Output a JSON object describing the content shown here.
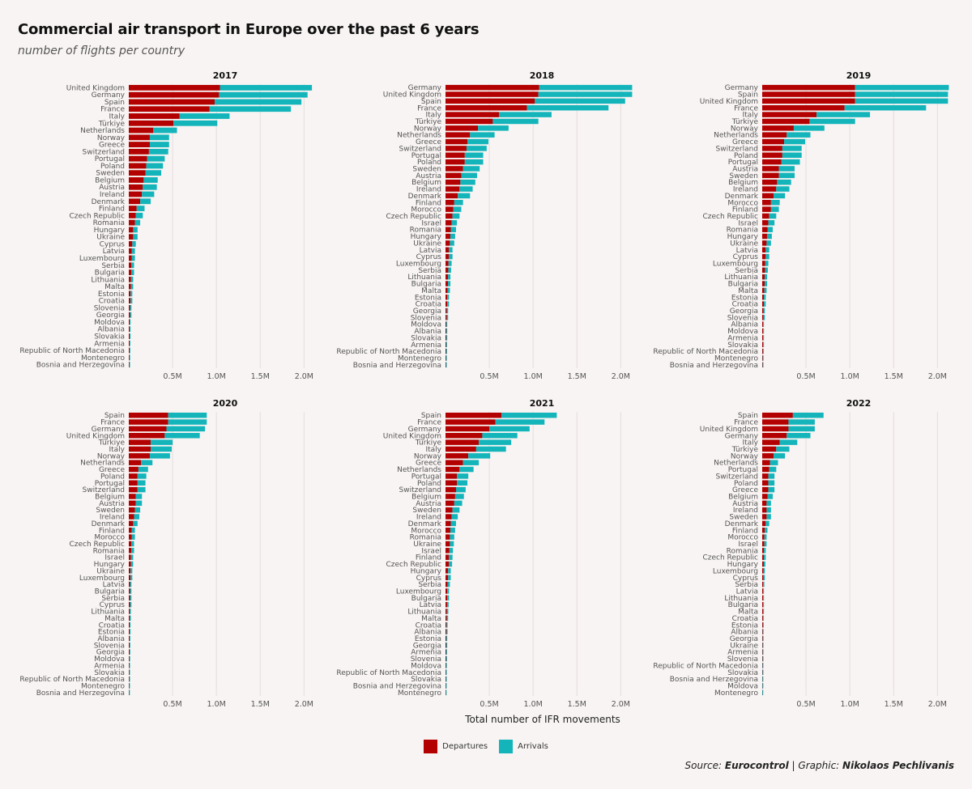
{
  "title": "Commercial air transport in Europe over the past 6 years",
  "subtitle": "number of flights per country",
  "x_axis_title": "Total number of IFR movements",
  "legend": [
    {
      "label": "Departures",
      "color": "#b30000"
    },
    {
      "label": "Arrivals",
      "color": "#13b5bb"
    }
  ],
  "source": {
    "prefix": "Source:",
    "source_name": "Eurocontrol",
    "separator": "|",
    "graphic_prefix": "Graphic:",
    "author": "Nikolaos Pechlivanis"
  },
  "colors": {
    "departures": "#b30000",
    "arrivals": "#13b5bb",
    "grid": "#e4dedd"
  },
  "chart_data": [
    {
      "type": "bar",
      "title": "2017",
      "stacked": true,
      "orientation": "horizontal",
      "xlim": [
        0,
        2200000
      ],
      "x_ticks": [
        500000,
        1000000,
        1500000,
        2000000
      ],
      "x_tick_labels": [
        "0.5M",
        "1.0M",
        "1.5M",
        "2.0M"
      ],
      "categories": [
        "United Kingdom",
        "Germany",
        "Spain",
        "France",
        "Italy",
        "Türkiye",
        "Netherlands",
        "Norway",
        "Greece",
        "Switzerland",
        "Portugal",
        "Poland",
        "Sweden",
        "Belgium",
        "Austria",
        "Ireland",
        "Denmark",
        "Finland",
        "Czech Republic",
        "Romania",
        "Hungary",
        "Ukraine",
        "Cyprus",
        "Latvia",
        "Luxembourg",
        "Serbia",
        "Bulgaria",
        "Lithuania",
        "Malta",
        "Estonia",
        "Croatia",
        "Slovenia",
        "Georgia",
        "Moldova",
        "Albania",
        "Slovakia",
        "Armenia",
        "Republic of North Macedonia",
        "Montenegro",
        "Bosnia and Herzegovina"
      ],
      "series": [
        {
          "name": "Departures",
          "values": [
            1040000,
            1030000,
            980000,
            920000,
            580000,
            510000,
            280000,
            240000,
            240000,
            230000,
            210000,
            200000,
            190000,
            170000,
            160000,
            150000,
            130000,
            90000,
            80000,
            70000,
            50000,
            50000,
            40000,
            35000,
            35000,
            30000,
            30000,
            25000,
            25000,
            20000,
            20000,
            15000,
            15000,
            10000,
            10000,
            10000,
            8000,
            8000,
            6000,
            5000
          ]
        },
        {
          "name": "Arrivals",
          "values": [
            1050000,
            1010000,
            990000,
            930000,
            570000,
            500000,
            270000,
            220000,
            220000,
            220000,
            200000,
            190000,
            180000,
            160000,
            160000,
            140000,
            120000,
            90000,
            80000,
            60000,
            50000,
            50000,
            40000,
            35000,
            35000,
            30000,
            30000,
            25000,
            25000,
            20000,
            20000,
            15000,
            15000,
            10000,
            10000,
            10000,
            8000,
            8000,
            6000,
            5000
          ]
        }
      ]
    },
    {
      "type": "bar",
      "title": "2018",
      "stacked": true,
      "orientation": "horizontal",
      "xlim": [
        0,
        2200000
      ],
      "x_ticks": [
        500000,
        1000000,
        1500000,
        2000000
      ],
      "x_tick_labels": [
        "0.5M",
        "1.0M",
        "1.5M",
        "2.0M"
      ],
      "categories": [
        "Germany",
        "United Kingdom",
        "Spain",
        "France",
        "Italy",
        "Türkiye",
        "Norway",
        "Netherlands",
        "Greece",
        "Switzerland",
        "Portugal",
        "Poland",
        "Sweden",
        "Austria",
        "Belgium",
        "Ireland",
        "Denmark",
        "Finland",
        "Morocco",
        "Czech Republic",
        "Israel",
        "Romania",
        "Hungary",
        "Ukraine",
        "Latvia",
        "Cyprus",
        "Luxembourg",
        "Serbia",
        "Lithuania",
        "Bulgaria",
        "Malta",
        "Estonia",
        "Croatia",
        "Georgia",
        "Slovenia",
        "Moldova",
        "Albania",
        "Slovakia",
        "Armenia",
        "Republic of North Macedonia",
        "Montenegro",
        "Bosnia and Herzegovina"
      ],
      "series": [
        {
          "name": "Departures",
          "values": [
            1070000,
            1060000,
            1020000,
            930000,
            610000,
            540000,
            370000,
            280000,
            250000,
            240000,
            220000,
            220000,
            200000,
            180000,
            170000,
            160000,
            140000,
            100000,
            90000,
            80000,
            70000,
            60000,
            55000,
            50000,
            40000,
            40000,
            35000,
            32000,
            28000,
            28000,
            25000,
            20000,
            20000,
            15000,
            15000,
            10000,
            10000,
            10000,
            8000,
            8000,
            6000,
            5000
          ]
        },
        {
          "name": "Arrivals",
          "values": [
            1060000,
            1070000,
            1030000,
            930000,
            600000,
            520000,
            350000,
            280000,
            240000,
            230000,
            210000,
            210000,
            190000,
            180000,
            170000,
            150000,
            140000,
            100000,
            90000,
            80000,
            60000,
            60000,
            55000,
            50000,
            40000,
            40000,
            35000,
            32000,
            28000,
            28000,
            25000,
            20000,
            20000,
            15000,
            15000,
            10000,
            10000,
            10000,
            8000,
            8000,
            6000,
            5000
          ]
        }
      ]
    },
    {
      "type": "bar",
      "title": "2019",
      "stacked": true,
      "orientation": "horizontal",
      "xlim": [
        0,
        2200000
      ],
      "x_ticks": [
        500000,
        1000000,
        1500000,
        2000000
      ],
      "x_tick_labels": [
        "0.5M",
        "1.0M",
        "1.5M",
        "2.0M"
      ],
      "categories": [
        "Germany",
        "Spain",
        "United Kingdom",
        "France",
        "Italy",
        "Türkiye",
        "Norway",
        "Netherlands",
        "Greece",
        "Switzerland",
        "Poland",
        "Portugal",
        "Austria",
        "Sweden",
        "Belgium",
        "Ireland",
        "Denmark",
        "Morocco",
        "Finland",
        "Czech Republic",
        "Israel",
        "Romania",
        "Hungary",
        "Ukraine",
        "Latvia",
        "Cyprus",
        "Luxembourg",
        "Serbia",
        "Lithuania",
        "Bulgaria",
        "Malta",
        "Estonia",
        "Croatia",
        "Georgia",
        "Slovenia",
        "Albania",
        "Moldova",
        "Armenia",
        "Slovakia",
        "Republic of North Macedonia",
        "Montenegro",
        "Bosnia and Herzegovina"
      ],
      "series": [
        {
          "name": "Departures",
          "values": [
            1060000,
            1060000,
            1060000,
            940000,
            620000,
            540000,
            360000,
            280000,
            250000,
            230000,
            230000,
            220000,
            190000,
            190000,
            170000,
            160000,
            130000,
            100000,
            100000,
            80000,
            70000,
            60000,
            55000,
            50000,
            40000,
            40000,
            35000,
            32000,
            28000,
            28000,
            25000,
            20000,
            20000,
            15000,
            15000,
            10000,
            10000,
            10000,
            10000,
            8000,
            6000,
            5000
          ]
        },
        {
          "name": "Arrivals",
          "values": [
            1070000,
            1060000,
            1060000,
            930000,
            610000,
            520000,
            350000,
            270000,
            240000,
            220000,
            220000,
            210000,
            180000,
            180000,
            160000,
            150000,
            130000,
            100000,
            90000,
            80000,
            70000,
            60000,
            55000,
            50000,
            40000,
            40000,
            35000,
            32000,
            28000,
            28000,
            25000,
            20000,
            20000,
            15000,
            15000,
            10000,
            10000,
            10000,
            10000,
            8000,
            6000,
            5000
          ]
        }
      ]
    },
    {
      "type": "bar",
      "title": "2020",
      "stacked": true,
      "orientation": "horizontal",
      "xlim": [
        0,
        2200000
      ],
      "x_ticks": [
        500000,
        1000000,
        1500000,
        2000000
      ],
      "x_tick_labels": [
        "0.5M",
        "1.0M",
        "1.5M",
        "2.0M"
      ],
      "categories": [
        "Spain",
        "France",
        "Germany",
        "United Kingdom",
        "Türkiye",
        "Italy",
        "Norway",
        "Netherlands",
        "Greece",
        "Poland",
        "Portugal",
        "Switzerland",
        "Belgium",
        "Austria",
        "Sweden",
        "Ireland",
        "Denmark",
        "Finland",
        "Morocco",
        "Czech Republic",
        "Romania",
        "Israel",
        "Hungary",
        "Ukraine",
        "Luxembourg",
        "Latvia",
        "Bulgaria",
        "Serbia",
        "Cyprus",
        "Lithuania",
        "Malta",
        "Croatia",
        "Estonia",
        "Albania",
        "Slovenia",
        "Georgia",
        "Moldova",
        "Armenia",
        "Slovakia",
        "Republic of North Macedonia",
        "Montenegro",
        "Bosnia and Herzegovina"
      ],
      "series": [
        {
          "name": "Departures",
          "values": [
            450000,
            450000,
            430000,
            410000,
            250000,
            250000,
            240000,
            140000,
            110000,
            100000,
            100000,
            100000,
            80000,
            80000,
            70000,
            60000,
            50000,
            35000,
            35000,
            30000,
            30000,
            25000,
            25000,
            20000,
            20000,
            15000,
            15000,
            15000,
            15000,
            12000,
            12000,
            10000,
            10000,
            8000,
            8000,
            8000,
            6000,
            5000,
            5000,
            5000,
            4000,
            3000
          ]
        },
        {
          "name": "Arrivals",
          "values": [
            440000,
            440000,
            440000,
            400000,
            250000,
            240000,
            230000,
            130000,
            110000,
            100000,
            90000,
            90000,
            70000,
            70000,
            60000,
            60000,
            50000,
            35000,
            35000,
            30000,
            30000,
            25000,
            25000,
            20000,
            20000,
            15000,
            15000,
            15000,
            15000,
            12000,
            12000,
            10000,
            10000,
            8000,
            8000,
            8000,
            6000,
            5000,
            5000,
            5000,
            4000,
            3000
          ]
        }
      ]
    },
    {
      "type": "bar",
      "title": "2021",
      "stacked": true,
      "orientation": "horizontal",
      "xlim": [
        0,
        2200000
      ],
      "x_ticks": [
        500000,
        1000000,
        1500000,
        2000000
      ],
      "x_tick_labels": [
        "0.5M",
        "1.0M",
        "1.5M",
        "2.0M"
      ],
      "categories": [
        "Spain",
        "France",
        "Germany",
        "United Kingdom",
        "Türkiye",
        "Italy",
        "Norway",
        "Greece",
        "Netherlands",
        "Portugal",
        "Poland",
        "Switzerland",
        "Belgium",
        "Austria",
        "Sweden",
        "Ireland",
        "Denmark",
        "Morocco",
        "Romania",
        "Ukraine",
        "Israel",
        "Finland",
        "Czech Republic",
        "Hungary",
        "Cyprus",
        "Serbia",
        "Luxembourg",
        "Bulgaria",
        "Latvia",
        "Lithuania",
        "Malta",
        "Croatia",
        "Albania",
        "Estonia",
        "Georgia",
        "Armenia",
        "Slovenia",
        "Moldova",
        "Republic of North Macedonia",
        "Slovakia",
        "Bosnia and Herzegovina",
        "Montenegro"
      ],
      "series": [
        {
          "name": "Departures",
          "values": [
            640000,
            570000,
            500000,
            420000,
            380000,
            350000,
            260000,
            200000,
            160000,
            130000,
            130000,
            120000,
            110000,
            100000,
            80000,
            70000,
            60000,
            55000,
            50000,
            50000,
            45000,
            40000,
            40000,
            30000,
            30000,
            25000,
            20000,
            20000,
            18000,
            16000,
            15000,
            12000,
            12000,
            10000,
            10000,
            8000,
            8000,
            6000,
            5000,
            5000,
            4000,
            3000
          ]
        },
        {
          "name": "Arrivals",
          "values": [
            630000,
            560000,
            460000,
            400000,
            370000,
            340000,
            250000,
            180000,
            160000,
            130000,
            120000,
            110000,
            100000,
            90000,
            80000,
            70000,
            60000,
            55000,
            50000,
            45000,
            40000,
            40000,
            35000,
            30000,
            30000,
            25000,
            20000,
            20000,
            18000,
            16000,
            15000,
            12000,
            12000,
            10000,
            10000,
            8000,
            8000,
            6000,
            5000,
            5000,
            4000,
            3000
          ]
        }
      ]
    },
    {
      "type": "bar",
      "title": "2022",
      "stacked": true,
      "orientation": "horizontal",
      "xlim": [
        0,
        2200000
      ],
      "x_ticks": [
        500000,
        1000000,
        1500000,
        2000000
      ],
      "x_tick_labels": [
        "0.5M",
        "1.0M",
        "1.5M",
        "2.0M"
      ],
      "categories": [
        "Spain",
        "France",
        "United Kingdom",
        "Germany",
        "Italy",
        "Türkiye",
        "Norway",
        "Netherlands",
        "Portugal",
        "Switzerland",
        "Poland",
        "Greece",
        "Belgium",
        "Austria",
        "Ireland",
        "Sweden",
        "Denmark",
        "Finland",
        "Morocco",
        "Israel",
        "Romania",
        "Czech Republic",
        "Hungary",
        "Luxembourg",
        "Cyprus",
        "Serbia",
        "Latvia",
        "Lithuania",
        "Bulgaria",
        "Malta",
        "Croatia",
        "Estonia",
        "Albania",
        "Georgia",
        "Ukraine",
        "Armenia",
        "Slovenia",
        "Republic of North Macedonia",
        "Slovakia",
        "Bosnia and Herzegovina",
        "Moldova",
        "Montenegro"
      ],
      "series": [
        {
          "name": "Departures",
          "values": [
            350000,
            300000,
            300000,
            280000,
            200000,
            160000,
            130000,
            90000,
            80000,
            70000,
            70000,
            70000,
            60000,
            50000,
            50000,
            50000,
            40000,
            30000,
            25000,
            25000,
            20000,
            20000,
            18000,
            15000,
            15000,
            12000,
            10000,
            10000,
            10000,
            10000,
            8000,
            8000,
            6000,
            6000,
            5000,
            5000,
            5000,
            4000,
            4000,
            3000,
            3000,
            2000
          ]
        },
        {
          "name": "Arrivals",
          "values": [
            350000,
            300000,
            300000,
            270000,
            200000,
            150000,
            130000,
            90000,
            80000,
            70000,
            70000,
            70000,
            60000,
            50000,
            50000,
            50000,
            40000,
            30000,
            25000,
            25000,
            20000,
            20000,
            18000,
            15000,
            15000,
            12000,
            10000,
            10000,
            10000,
            10000,
            8000,
            8000,
            6000,
            6000,
            5000,
            5000,
            5000,
            4000,
            4000,
            3000,
            3000,
            2000
          ]
        }
      ]
    }
  ]
}
